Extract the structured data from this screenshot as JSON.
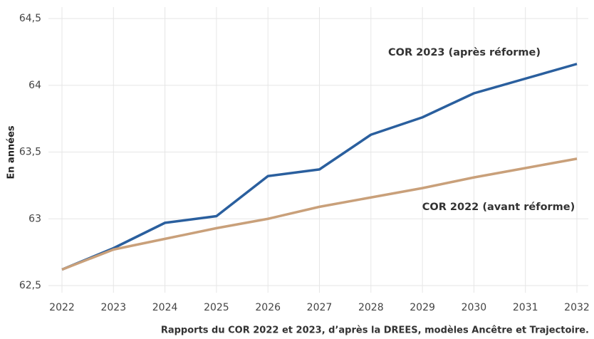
{
  "chart_data": {
    "type": "line",
    "y_label": "En années",
    "source": "Rapports du COR 2022 et 2023, d’après la DREES, modèles Ancêtre et Trajectoire.",
    "x": [
      2022,
      2023,
      2024,
      2025,
      2026,
      2027,
      2028,
      2029,
      2030,
      2031,
      2032
    ],
    "series": [
      {
        "name": "COR 2023 (après réforme)",
        "color": "#2a5f9e",
        "values": [
          62.62,
          62.78,
          62.97,
          63.02,
          63.32,
          63.37,
          63.63,
          63.76,
          63.94,
          64.05,
          64.16
        ]
      },
      {
        "name": "COR 2022 (avant réforme)",
        "color": "#c9a07a",
        "values": [
          62.62,
          62.77,
          62.85,
          62.93,
          63.0,
          63.09,
          63.16,
          63.23,
          63.31,
          63.38,
          63.45
        ]
      }
    ],
    "xlim": [
      2022,
      2032
    ],
    "xticks": [
      2022,
      2023,
      2024,
      2025,
      2026,
      2027,
      2028,
      2029,
      2030,
      2031,
      2032
    ],
    "ylim": [
      62.5,
      64.5
    ],
    "yticks": [
      {
        "value": 62.5,
        "label": "62,5"
      },
      63,
      {
        "value": 63.5,
        "label": "63,5"
      },
      64,
      {
        "value": 64.5,
        "label": "64,5"
      }
    ],
    "grid": true
  }
}
